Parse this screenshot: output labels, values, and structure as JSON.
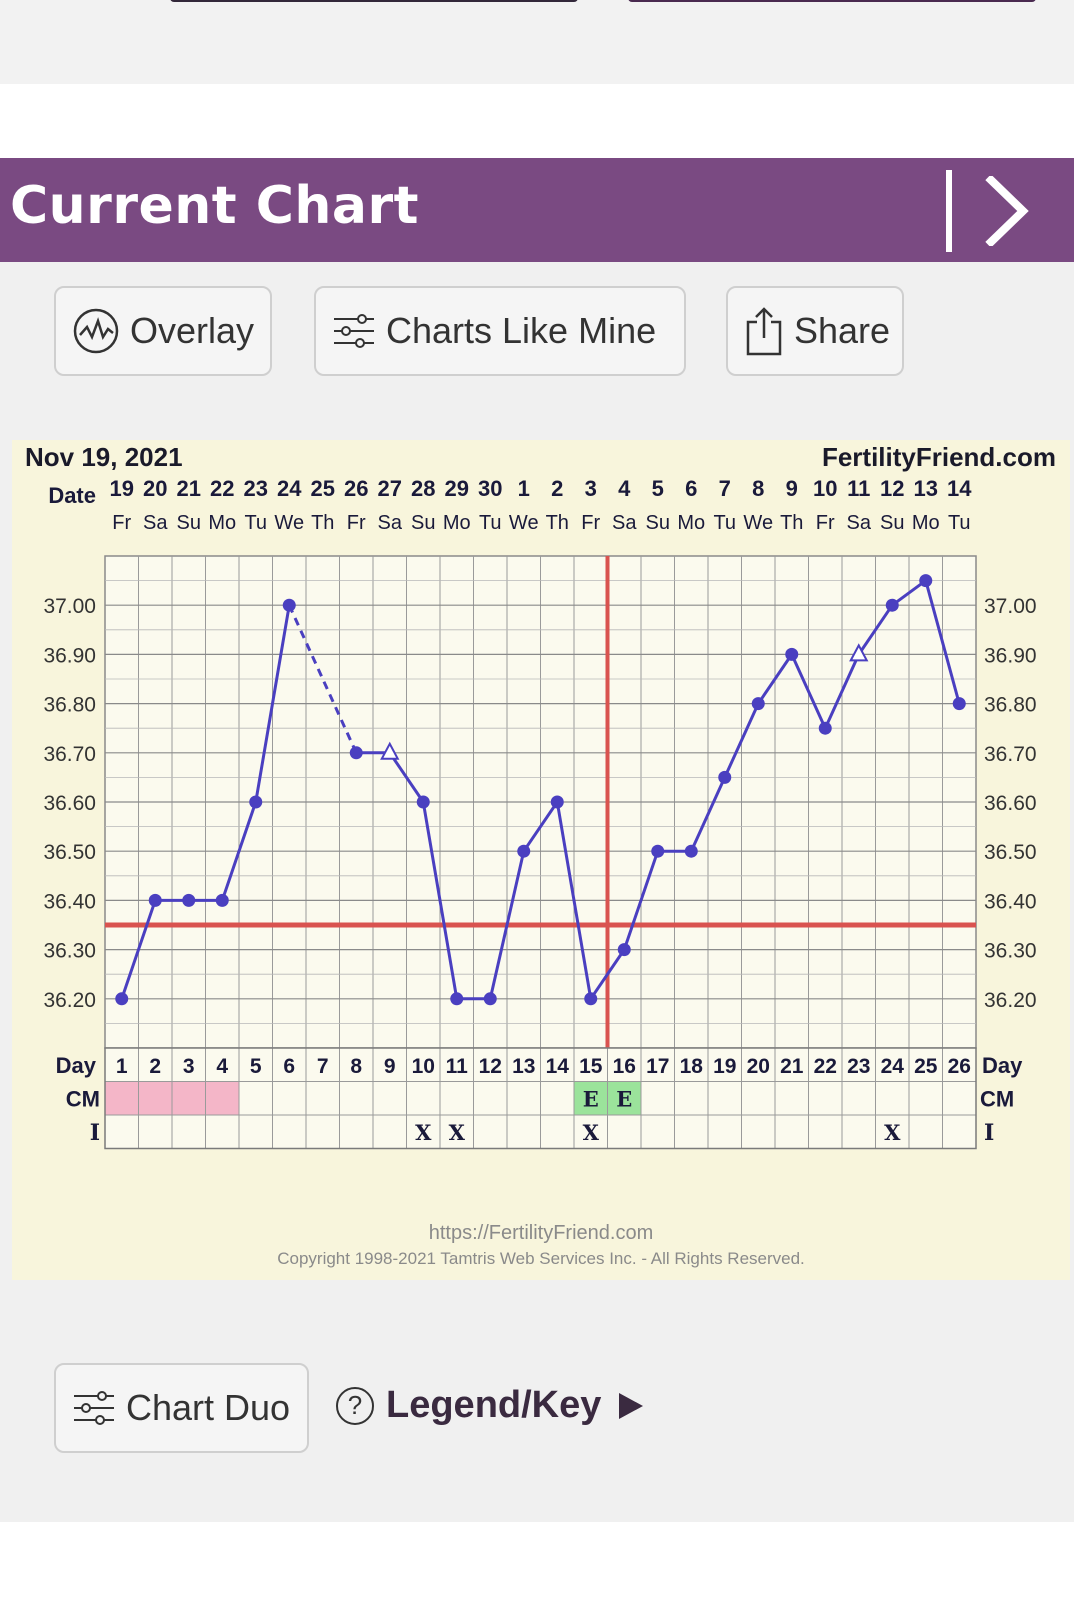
{
  "header": {
    "title": "Current Chart"
  },
  "toolbar": {
    "overlay": "Overlay",
    "charts_like_mine": "Charts Like Mine",
    "share": "Share"
  },
  "bottom": {
    "chart_duo": "Chart Duo",
    "legend": "Legend/Key"
  },
  "colors": {
    "header": "#7a4a82",
    "series": "#4a3fc0",
    "coverline": "#d9534f",
    "chart_bg": "#f8f5dc",
    "cm_pink": "#f4b6c8",
    "cm_green": "#9be39b"
  },
  "chart_data": {
    "type": "line",
    "date_label": "Nov 19, 2021",
    "site": "FertilityFriend.com",
    "row_label_date": "Date",
    "row_label_day": "Day",
    "row_label_cm": "CM",
    "row_label_i": "I",
    "dates": [
      "19",
      "20",
      "21",
      "22",
      "23",
      "24",
      "25",
      "26",
      "27",
      "28",
      "29",
      "30",
      "1",
      "2",
      "3",
      "4",
      "5",
      "6",
      "7",
      "8",
      "9",
      "10",
      "11",
      "12",
      "13",
      "14"
    ],
    "weekdays": [
      "Fr",
      "Sa",
      "Su",
      "Mo",
      "Tu",
      "We",
      "Th",
      "Fr",
      "Sa",
      "Su",
      "Mo",
      "Tu",
      "We",
      "Th",
      "Fr",
      "Sa",
      "Su",
      "Mo",
      "Tu",
      "We",
      "Th",
      "Fr",
      "Sa",
      "Su",
      "Mo",
      "Tu"
    ],
    "days": [
      1,
      2,
      3,
      4,
      5,
      6,
      7,
      8,
      9,
      10,
      11,
      12,
      13,
      14,
      15,
      16,
      17,
      18,
      19,
      20,
      21,
      22,
      23,
      24,
      25,
      26
    ],
    "temps": [
      36.2,
      36.4,
      36.4,
      36.4,
      36.6,
      37.0,
      null,
      36.7,
      36.7,
      36.6,
      36.2,
      36.2,
      36.5,
      36.6,
      36.2,
      36.3,
      36.5,
      36.5,
      36.65,
      36.8,
      36.9,
      36.75,
      36.9,
      37.0,
      37.05,
      36.8
    ],
    "open_markers": [
      9,
      23
    ],
    "dashed_segment": [
      6,
      8
    ],
    "ylim": [
      36.1,
      37.1
    ],
    "yticks": [
      "37.00",
      "36.90",
      "36.80",
      "36.70",
      "36.60",
      "36.50",
      "36.40",
      "36.30",
      "36.20"
    ],
    "coverline": 36.35,
    "ovulation_day": 16,
    "cm": [
      "pink",
      "pink",
      "pink",
      "pink",
      "",
      "",
      "",
      "",
      "",
      "",
      "",
      "",
      "",
      "",
      "E",
      "E",
      "",
      "",
      "",
      "",
      "",
      "",
      "",
      "",
      "",
      ""
    ],
    "intercourse": [
      "",
      "",
      "",
      "",
      "",
      "",
      "",
      "",
      "",
      "X",
      "X",
      "",
      "",
      "",
      "X",
      "",
      "",
      "",
      "",
      "",
      "",
      "",
      "",
      "X",
      "",
      ""
    ],
    "footer_url": "https://FertilityFriend.com",
    "footer_copyright": "Copyright 1998-2021 Tamtris Web Services Inc. - All Rights Reserved."
  }
}
